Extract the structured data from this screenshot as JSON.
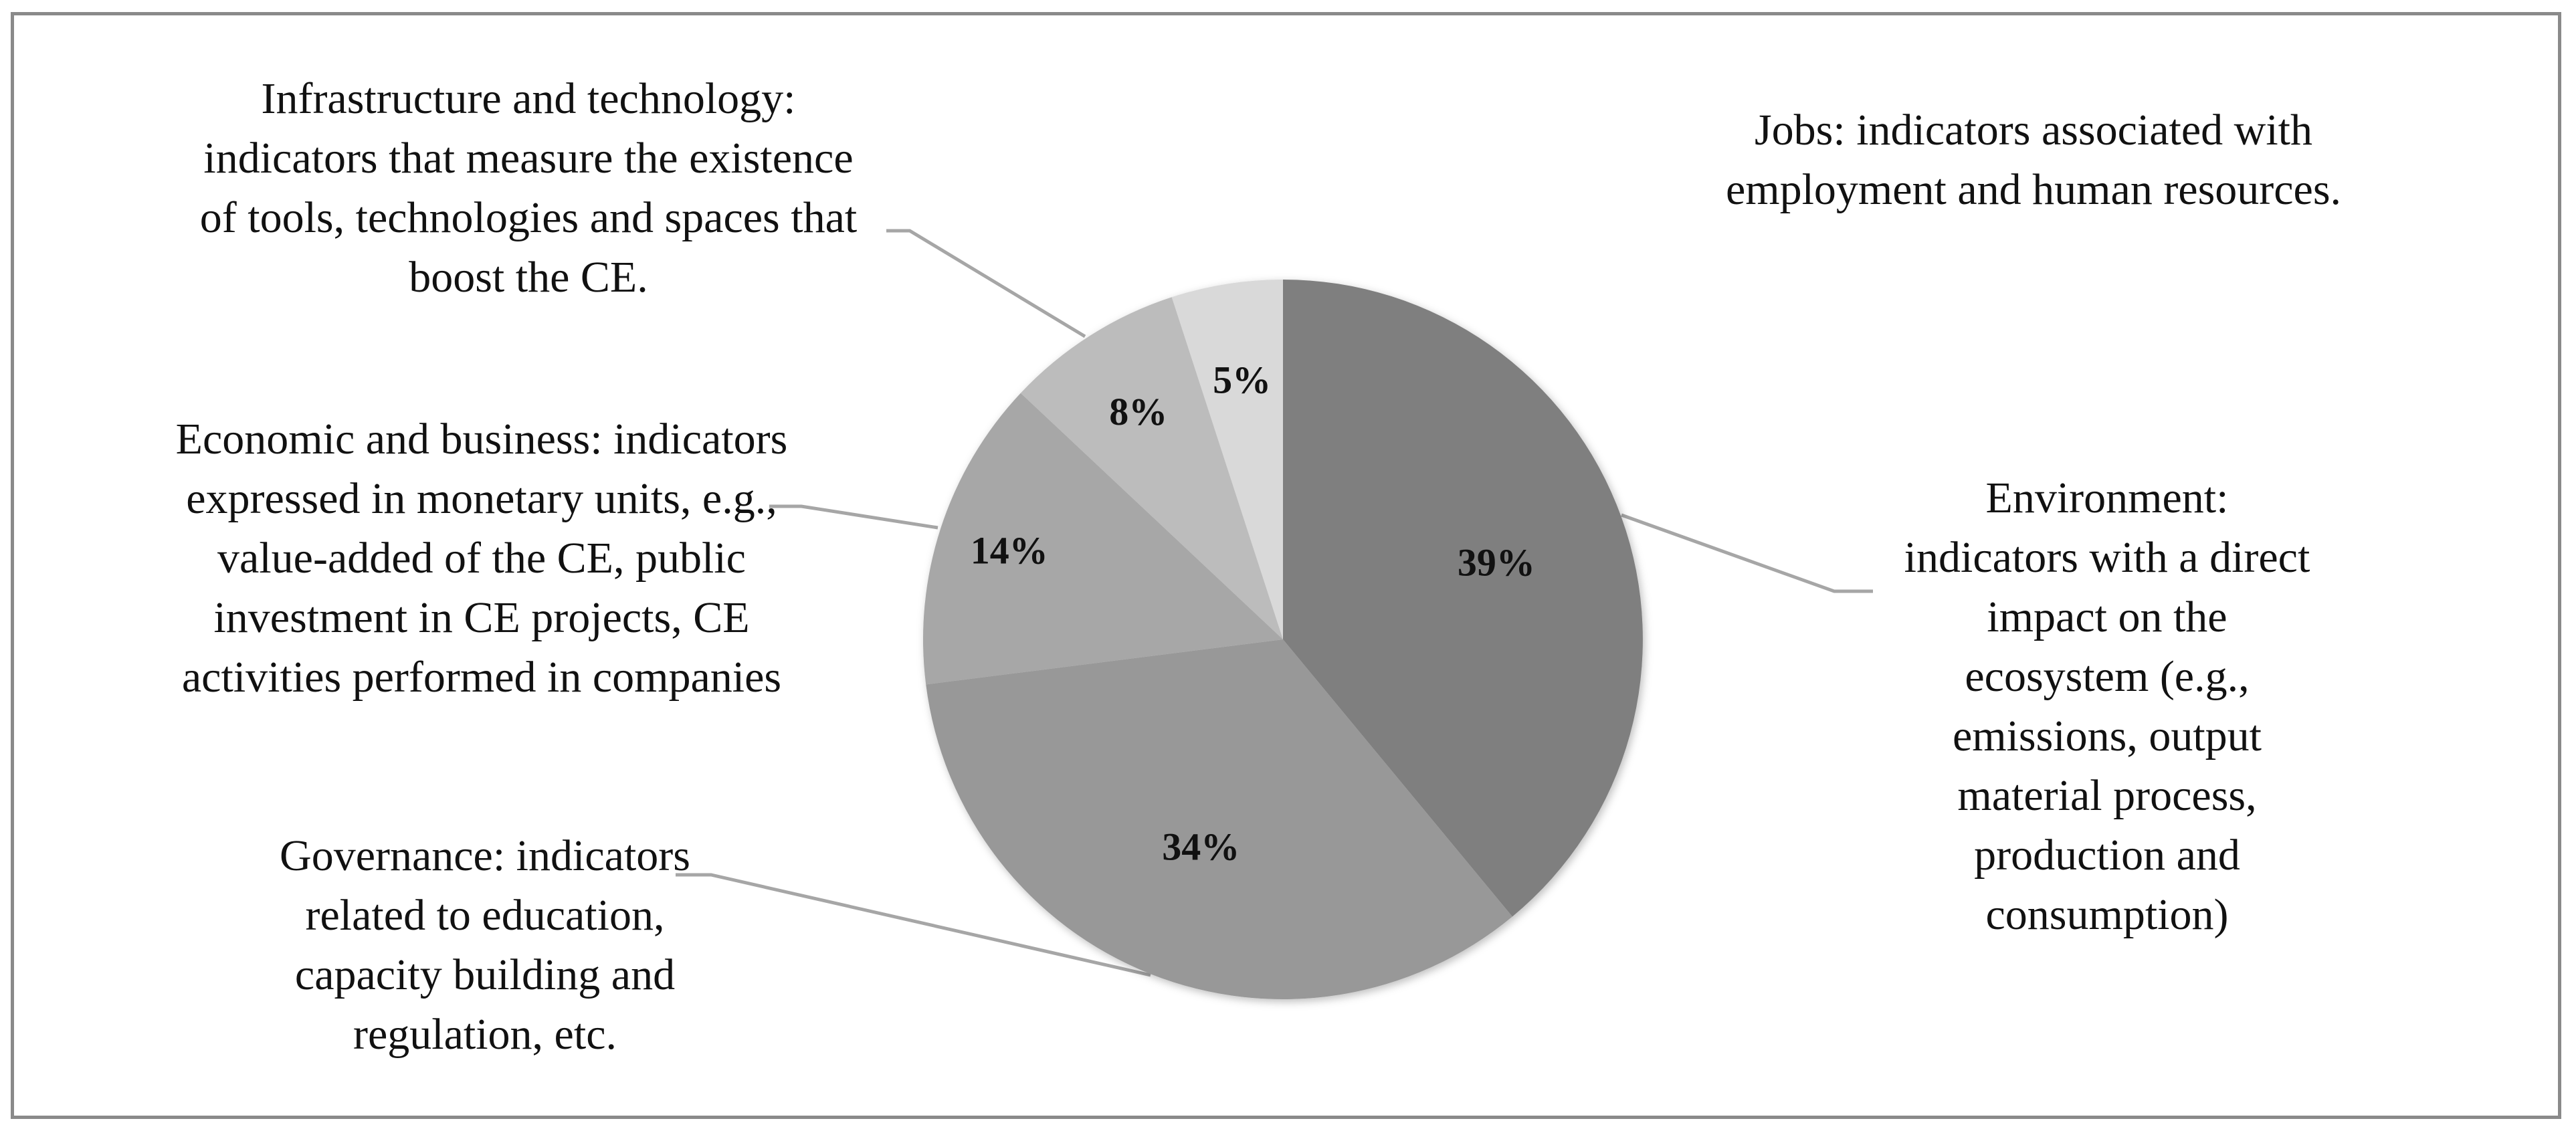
{
  "chart_data": {
    "type": "pie",
    "title": "",
    "start_angle_deg": 0,
    "direction": "clockwise",
    "slices": [
      {
        "key": "environment",
        "value": 39,
        "value_label": "39%",
        "color": "#7f7f7f",
        "category_lines": [
          "Environment:",
          "indicators with a direct",
          "impact on the",
          "ecosystem (e.g.,",
          "emissions, output",
          "material process,",
          "production and",
          "consumption)"
        ]
      },
      {
        "key": "governance",
        "value": 34,
        "value_label": "34%",
        "color": "#989898",
        "category_lines": [
          "Governance: indicators",
          "related to education,",
          "capacity building and",
          "regulation, etc."
        ]
      },
      {
        "key": "economic",
        "value": 14,
        "value_label": "14%",
        "color": "#a7a7a7",
        "category_lines": [
          "Economic and business: indicators",
          "expressed in monetary units, e.g.,",
          "value-added of the CE, public",
          "investment in CE projects, CE",
          "activities performed in companies"
        ]
      },
      {
        "key": "infrastructure",
        "value": 8,
        "value_label": "8%",
        "color": "#bcbcbc",
        "category_lines": [
          "Infrastructure and technology:",
          "indicators that measure the existence",
          "of tools, technologies and spaces that",
          "boost the CE."
        ]
      },
      {
        "key": "jobs",
        "value": 5,
        "value_label": "5%",
        "color": "#d9d9d9",
        "category_lines": [
          "Jobs: indicators associated with",
          "employment and human resources."
        ]
      }
    ],
    "legend": "none",
    "data_labels": "inside",
    "category_labels": "outside-with-leader-lines"
  }
}
